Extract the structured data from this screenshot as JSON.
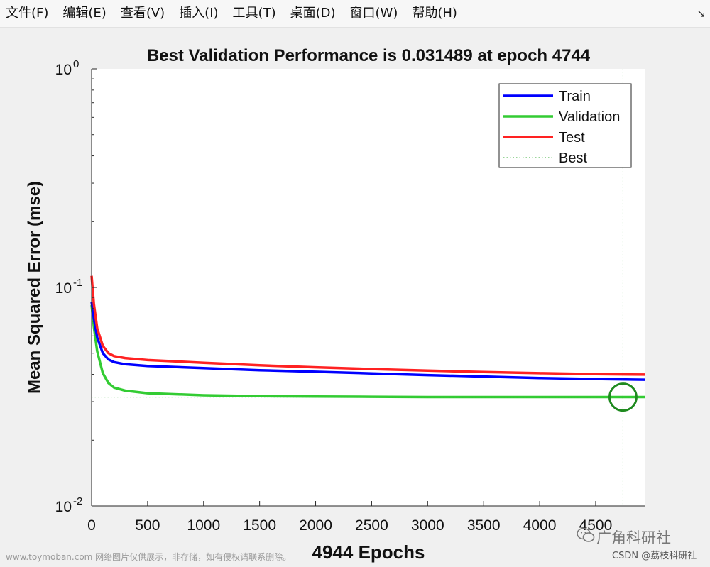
{
  "menubar": {
    "items": [
      {
        "label": "文件(F)"
      },
      {
        "label": "编辑(E)"
      },
      {
        "label": "查看(V)"
      },
      {
        "label": "插入(I)"
      },
      {
        "label": "工具(T)"
      },
      {
        "label": "桌面(D)"
      },
      {
        "label": "窗口(W)"
      },
      {
        "label": "帮助(H)"
      }
    ],
    "dock_icon": "dock-arrow-icon"
  },
  "chart_data": {
    "type": "line",
    "title": "Best Validation Performance is 0.031489 at epoch 4744",
    "xlabel": "4944 Epochs",
    "ylabel": "Mean Squared Error  (mse)",
    "xlim": [
      0,
      4944
    ],
    "ylim": [
      0.01,
      1
    ],
    "yscale": "log",
    "xticks": [
      0,
      500,
      1000,
      1500,
      2000,
      2500,
      3000,
      3500,
      4000,
      4500
    ],
    "xtick_labels": [
      "0",
      "500",
      "1000",
      "1500",
      "2000",
      "2500",
      "3000",
      "3500",
      "4000",
      "4500"
    ],
    "yticks": [
      0.01,
      0.1,
      1
    ],
    "ytick_labels": [
      {
        "base": "10",
        "exp": "-2"
      },
      {
        "base": "10",
        "exp": "-1"
      },
      {
        "base": "10",
        "exp": "0"
      }
    ],
    "legend": {
      "position": "top-right"
    },
    "series": [
      {
        "name": "Train",
        "color": "#0000ff",
        "x": [
          0,
          20,
          50,
          100,
          150,
          200,
          300,
          500,
          1000,
          1500,
          2000,
          2500,
          3000,
          3500,
          4000,
          4500,
          4944
        ],
        "y": [
          0.086,
          0.072,
          0.059,
          0.05,
          0.0468,
          0.0455,
          0.0445,
          0.0437,
          0.0427,
          0.0418,
          0.0411,
          0.0404,
          0.0397,
          0.0391,
          0.0385,
          0.0381,
          0.0378
        ]
      },
      {
        "name": "Validation",
        "color": "#33cc33",
        "x": [
          0,
          20,
          50,
          100,
          150,
          200,
          300,
          500,
          1000,
          1500,
          2000,
          2500,
          3000,
          3500,
          4000,
          4500,
          4944
        ],
        "y": [
          0.083,
          0.066,
          0.051,
          0.0405,
          0.0365,
          0.0348,
          0.0337,
          0.0328,
          0.0321,
          0.0318,
          0.0317,
          0.0316,
          0.0315,
          0.0315,
          0.0315,
          0.0315,
          0.0315
        ]
      },
      {
        "name": "Test",
        "color": "#ff2222",
        "x": [
          0,
          20,
          50,
          100,
          150,
          200,
          300,
          500,
          1000,
          1500,
          2000,
          2500,
          3000,
          3500,
          4000,
          4500,
          4944
        ],
        "y": [
          0.113,
          0.084,
          0.065,
          0.054,
          0.05,
          0.0485,
          0.0475,
          0.0465,
          0.0452,
          0.044,
          0.0431,
          0.0423,
          0.0416,
          0.041,
          0.0405,
          0.0401,
          0.0399
        ]
      }
    ],
    "best": {
      "name": "Best",
      "epoch": 4744,
      "value": 0.031489,
      "color": "#33aa33"
    }
  },
  "watermarks": {
    "left": "www.toymoban.com 网络图片仅供展示，非存储，如有侵权请联系删除。",
    "brand": "广角科研社",
    "csdn": "CSDN @荔枝科研社"
  }
}
